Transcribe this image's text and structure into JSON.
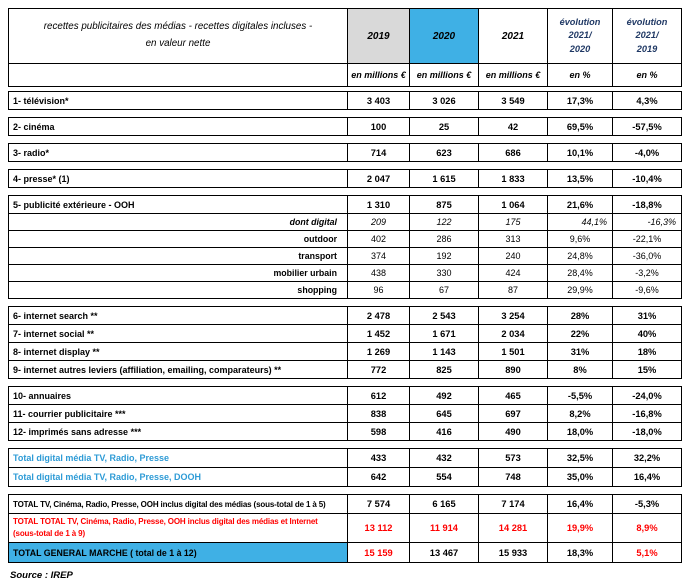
{
  "colors": {
    "header_gray": "#D9D9D9",
    "header_blue": "#3FB0E5",
    "navy": "#1F3864",
    "blue_text": "#2E9BD6",
    "red": "#FF0000",
    "border": "#000000"
  },
  "chart_data": {
    "type": "table",
    "title": "recettes publicitaires des médias - recettes digitales incluses -",
    "title_line2": "en valeur nette",
    "column_headers": [
      {
        "label": "2019"
      },
      {
        "label": "2020"
      },
      {
        "label": "2021"
      },
      {
        "label": "évolution",
        "line2": "2021/",
        "line3": "2020"
      },
      {
        "label": "évolution",
        "line2": "2021/",
        "line3": "2019"
      }
    ],
    "unit_row": [
      "en millions €",
      "en millions €",
      "en millions €",
      "en %",
      "en %"
    ],
    "row_groups": [
      {
        "name": "television",
        "rows": [
          {
            "label": "1- télévision*",
            "values": [
              "3 403",
              "3 026",
              "3 549",
              "17,3%",
              "4,3%"
            ],
            "style": "main"
          }
        ]
      },
      {
        "name": "cinema",
        "rows": [
          {
            "label": "2- cinéma",
            "values": [
              "100",
              "25",
              "42",
              "69,5%",
              "-57,5%"
            ],
            "style": "main"
          }
        ]
      },
      {
        "name": "radio",
        "rows": [
          {
            "label": "3- radio*",
            "values": [
              "714",
              "623",
              "686",
              "10,1%",
              "-4,0%"
            ],
            "style": "main"
          }
        ]
      },
      {
        "name": "presse",
        "rows": [
          {
            "label": "4- presse* (1)",
            "values": [
              "2 047",
              "1 615",
              "1 833",
              "13,5%",
              "-10,4%"
            ],
            "style": "main"
          }
        ]
      },
      {
        "name": "ooh",
        "rows": [
          {
            "label": "5- publicité extérieure - OOH",
            "values": [
              "1 310",
              "875",
              "1 064",
              "21,6%",
              "-18,8%"
            ],
            "style": "main"
          },
          {
            "label": "dont digital",
            "values": [
              "209",
              "122",
              "175",
              "44,1%",
              "-16,3%"
            ],
            "style": "sub-italic",
            "value_classes": [
              "",
              "",
              "",
              "right",
              "right"
            ]
          },
          {
            "label": "outdoor",
            "values": [
              "402",
              "286",
              "313",
              "9,6%",
              "-22,1%"
            ],
            "style": "sub"
          },
          {
            "label": "transport",
            "values": [
              "374",
              "192",
              "240",
              "24,8%",
              "-36,0%"
            ],
            "style": "sub"
          },
          {
            "label": "mobilier urbain",
            "values": [
              "438",
              "330",
              "424",
              "28,4%",
              "-3,2%"
            ],
            "style": "sub"
          },
          {
            "label": "shopping",
            "values": [
              "96",
              "67",
              "87",
              "29,9%",
              "-9,6%"
            ],
            "style": "sub"
          }
        ]
      },
      {
        "name": "internet",
        "rows": [
          {
            "label": "6- internet search **",
            "values": [
              "2 478",
              "2 543",
              "3 254",
              "28%",
              "31%"
            ],
            "style": "main"
          },
          {
            "label": "7- internet social **",
            "values": [
              "1 452",
              "1 671",
              "2 034",
              "22%",
              "40%"
            ],
            "style": "main"
          },
          {
            "label": "8- internet display **",
            "values": [
              "1 269",
              "1 143",
              "1 501",
              "31%",
              "18%"
            ],
            "style": "main"
          },
          {
            "label": "9- internet autres leviers (affiliation, emailing, comparateurs) **",
            "values": [
              "772",
              "825",
              "890",
              "8%",
              "15%"
            ],
            "style": "main"
          }
        ]
      },
      {
        "name": "annuaires-courrier-imprimes",
        "rows": [
          {
            "label": "10- annuaires",
            "values": [
              "612",
              "492",
              "465",
              "-5,5%",
              "-24,0%"
            ],
            "style": "main"
          },
          {
            "label": "11- courrier publicitaire ***",
            "values": [
              "838",
              "645",
              "697",
              "8,2%",
              "-16,8%"
            ],
            "style": "main"
          },
          {
            "label": "12- imprimés sans adresse ***",
            "values": [
              "598",
              "416",
              "490",
              "18,0%",
              "-18,0%"
            ],
            "style": "main"
          }
        ]
      },
      {
        "name": "digital-totals",
        "rows": [
          {
            "label": "Total digital média TV, Radio, Presse",
            "values": [
              "433",
              "432",
              "573",
              "32,5%",
              "32,2%"
            ],
            "style": "blue"
          },
          {
            "label": "Total digital média TV, Radio, Presse, DOOH",
            "values": [
              "642",
              "554",
              "748",
              "35,0%",
              "16,4%"
            ],
            "style": "blue"
          }
        ]
      },
      {
        "name": "grand-totals",
        "rows": [
          {
            "label": "TOTAL TV, Cinéma, Radio, Presse, OOH inclus digital des médias (sous-total de 1 à 5)",
            "values": [
              "7 574",
              "6 165",
              "7 174",
              "16,4%",
              "-5,3%"
            ],
            "style": "total"
          },
          {
            "label": "TOTAL TOTAL TV, Cinéma, Radio, Presse, OOH inclus digital des médias et Internet",
            "label2": "(sous-total de 1 à 9)",
            "values": [
              "13 112",
              "11 914",
              "14 281",
              "19,9%",
              "8,9%"
            ],
            "style": "total-red"
          },
          {
            "label": "TOTAL GENERAL MARCHE ( total de 1 à 12)",
            "values": [
              "15 159",
              "13 467",
              "15 933",
              "18,3%",
              "5,1%"
            ],
            "style": "grand",
            "value_classes": [
              "red",
              "",
              "",
              "",
              "red"
            ]
          }
        ]
      }
    ],
    "source": "Source : IREP"
  }
}
